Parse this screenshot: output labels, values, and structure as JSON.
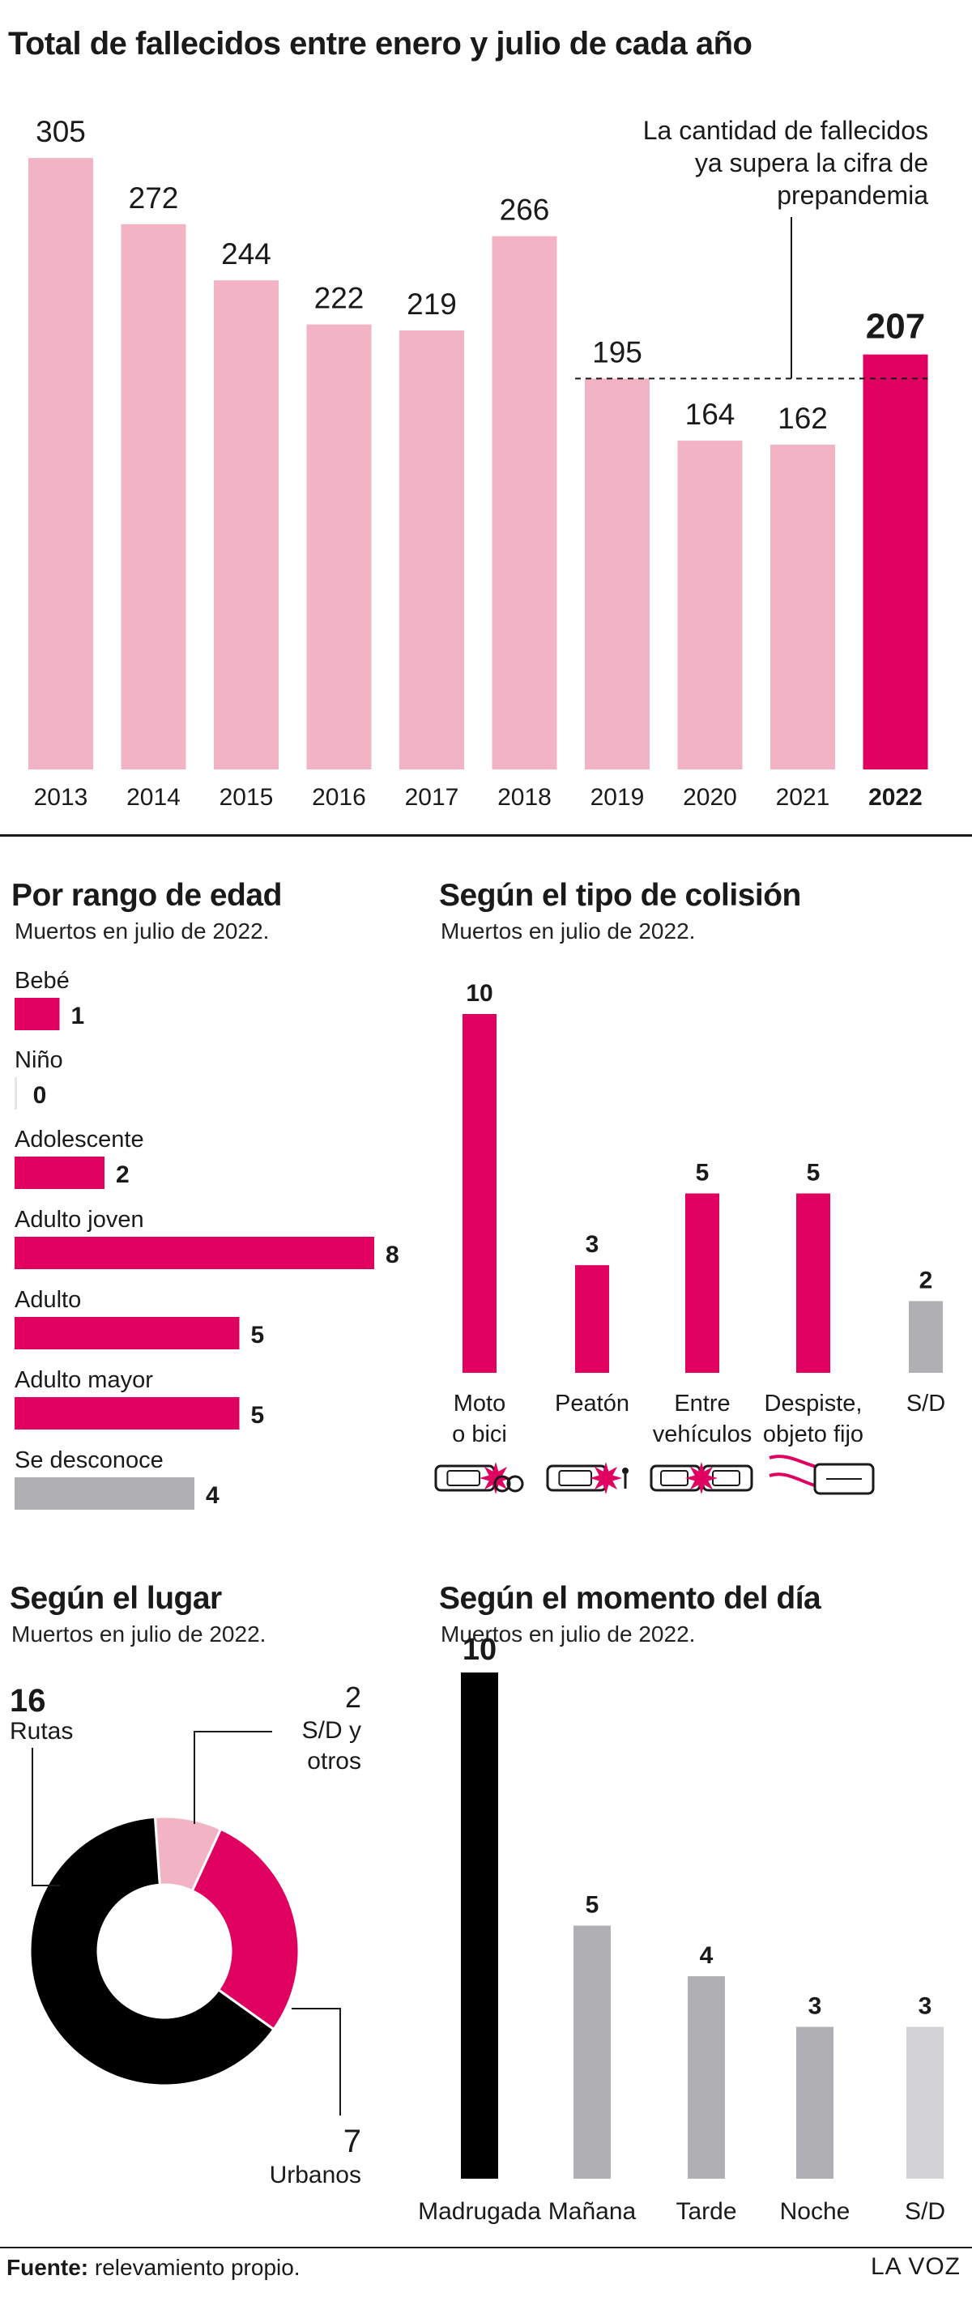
{
  "main": {
    "title": "Total de fallecidos entre enero y julio de cada año",
    "annotation": [
      "La cantidad de fallecidos",
      "ya supera la cifra de",
      "prepandemia"
    ],
    "chart_data": {
      "type": "bar",
      "categories": [
        "2013",
        "2014",
        "2015",
        "2016",
        "2017",
        "2018",
        "2019",
        "2020",
        "2021",
        "2022"
      ],
      "values": [
        305,
        272,
        244,
        222,
        219,
        266,
        195,
        164,
        162,
        207
      ],
      "highlight": "2022",
      "reference_value": 195,
      "colors": {
        "bar": "#f2b3c4",
        "highlight": "#e0005f"
      }
    }
  },
  "edad": {
    "title": "Por rango de edad",
    "subtitle": "Muertos en julio de 2022.",
    "chart_data": {
      "type": "bar",
      "orientation": "horizontal",
      "categories": [
        "Bebé",
        "Niño",
        "Adolescente",
        "Adulto joven",
        "Adulto",
        "Adulto mayor",
        "Se desconoce"
      ],
      "values": [
        1,
        0,
        2,
        8,
        5,
        5,
        4
      ],
      "colors": [
        "#e0005f",
        "#e0005f",
        "#e0005f",
        "#e0005f",
        "#e0005f",
        "#e0005f",
        "#b0afb4"
      ]
    }
  },
  "colision": {
    "title": "Según el tipo de colisión",
    "subtitle": "Muertos en julio de 2022.",
    "chart_data": {
      "type": "bar",
      "categories": [
        [
          "Moto",
          "o bici"
        ],
        [
          "Peatón"
        ],
        [
          "Entre",
          "vehículos"
        ],
        [
          "Despiste,",
          "objeto fijo"
        ],
        [
          "S/D"
        ]
      ],
      "values": [
        10,
        3,
        5,
        5,
        2
      ],
      "colors": [
        "#e0005f",
        "#e0005f",
        "#e0005f",
        "#e0005f",
        "#b0afb4"
      ],
      "icons": [
        "car-motorcycle-crash-icon",
        "car-pedestrian-crash-icon",
        "car-car-crash-icon",
        "car-skid-icon",
        ""
      ]
    }
  },
  "lugar": {
    "title": "Según el lugar",
    "subtitle": "Muertos en julio de 2022.",
    "chart_data": {
      "type": "pie",
      "donut": true,
      "slices": [
        {
          "value": 16,
          "label": [
            "Rutas"
          ],
          "color": "#000000"
        },
        {
          "value": 2,
          "label": [
            "S/D y",
            "otros"
          ],
          "color": "#f2b3c4"
        },
        {
          "value": 7,
          "label": [
            "Urbanos"
          ],
          "color": "#e0005f"
        }
      ]
    }
  },
  "momento": {
    "title": "Según el momento del día",
    "subtitle": "Muertos en julio de 2022.",
    "chart_data": {
      "type": "bar",
      "categories": [
        "Madrugada",
        "Mañana",
        "Tarde",
        "Noche",
        "S/D"
      ],
      "values": [
        10,
        5,
        4,
        3,
        3
      ],
      "colors": [
        "#000000",
        "#b0afb4",
        "#b0afb4",
        "#b0afb4",
        "#d3d2d6"
      ]
    }
  },
  "footer": {
    "source_label": "Fuente:",
    "source_text": " relevamiento propio.",
    "brand": "LA VOZ"
  }
}
